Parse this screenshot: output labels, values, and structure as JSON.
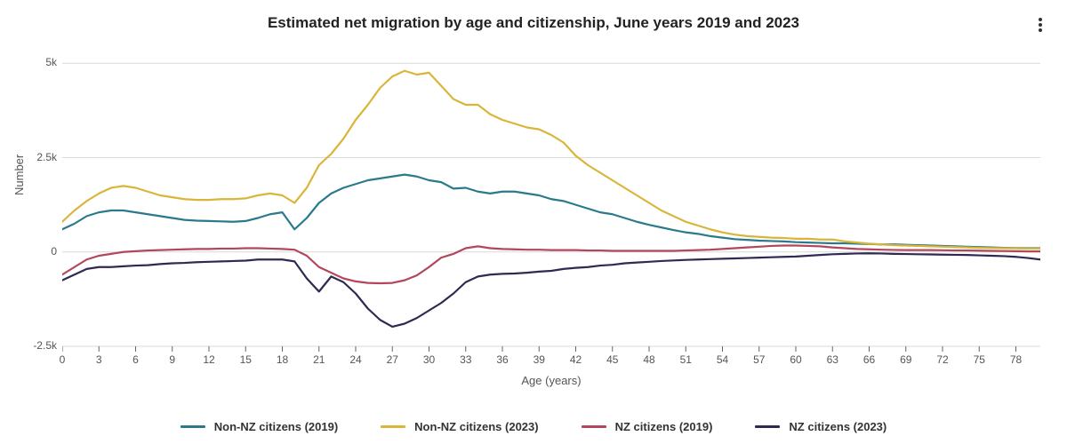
{
  "chart": {
    "type": "line",
    "title": "Estimated net migration by age and citizenship, June years 2019 and 2023",
    "title_fontsize": 17,
    "title_fontweight": 700,
    "background_color": "#ffffff",
    "gridline_color": "#d9d9d9",
    "axis_color": "#666666",
    "tick_font_color": "#555555",
    "x": {
      "label": "Age (years)",
      "label_fontsize": 13,
      "min": 0,
      "max": 80,
      "tick_start": 0,
      "tick_step": 3,
      "tick_end": 78,
      "tick_fontsize": 12
    },
    "y": {
      "label": "Number",
      "label_fontsize": 13,
      "min": -2500,
      "max": 5500,
      "ticks": [
        -2500,
        0,
        2500,
        5000
      ],
      "tick_labels": [
        "-2.5k",
        "0",
        "2.5k",
        "5k"
      ],
      "tick_fontsize": 12
    },
    "line_width": 2.2,
    "series": [
      {
        "key": "non_nz_2019",
        "label": "Non-NZ citizens (2019)",
        "color": "#2a7a8c",
        "values": [
          600,
          750,
          950,
          1050,
          1100,
          1100,
          1050,
          1000,
          950,
          900,
          850,
          830,
          820,
          810,
          800,
          820,
          900,
          1000,
          1050,
          600,
          900,
          1300,
          1550,
          1700,
          1800,
          1900,
          1950,
          2000,
          2050,
          2000,
          1900,
          1850,
          1680,
          1700,
          1600,
          1550,
          1600,
          1600,
          1550,
          1500,
          1400,
          1350,
          1250,
          1150,
          1050,
          1000,
          900,
          800,
          720,
          650,
          580,
          520,
          480,
          420,
          380,
          340,
          320,
          300,
          290,
          280,
          260,
          250,
          240,
          230,
          230,
          220,
          210,
          200,
          200,
          190,
          180,
          170,
          160,
          150,
          140,
          130,
          120,
          110,
          105,
          100,
          100
        ]
      },
      {
        "key": "non_nz_2023",
        "label": "Non-NZ citizens (2023)",
        "color": "#d9b539",
        "values": [
          800,
          1100,
          1350,
          1550,
          1700,
          1750,
          1700,
          1600,
          1500,
          1450,
          1400,
          1380,
          1380,
          1400,
          1400,
          1420,
          1500,
          1550,
          1500,
          1300,
          1700,
          2300,
          2600,
          3000,
          3500,
          3900,
          4350,
          4650,
          4800,
          4700,
          4750,
          4400,
          4050,
          3900,
          3900,
          3650,
          3500,
          3400,
          3300,
          3250,
          3100,
          2900,
          2550,
          2300,
          2100,
          1900,
          1700,
          1500,
          1300,
          1100,
          950,
          800,
          700,
          600,
          520,
          460,
          420,
          400,
          380,
          370,
          350,
          350,
          330,
          330,
          280,
          250,
          220,
          200,
          180,
          170,
          160,
          150,
          140,
          130,
          120,
          110,
          105,
          100,
          95,
          90,
          90
        ]
      },
      {
        "key": "nz_2019",
        "label": "NZ citizens (2019)",
        "color": "#b3465a",
        "values": [
          -600,
          -400,
          -200,
          -100,
          -50,
          0,
          20,
          40,
          50,
          60,
          70,
          80,
          80,
          90,
          90,
          100,
          100,
          90,
          80,
          60,
          -100,
          -400,
          -550,
          -700,
          -780,
          -820,
          -830,
          -820,
          -750,
          -620,
          -400,
          -150,
          -50,
          100,
          150,
          100,
          80,
          70,
          60,
          60,
          50,
          50,
          50,
          40,
          40,
          30,
          30,
          30,
          30,
          30,
          30,
          40,
          50,
          60,
          80,
          100,
          120,
          140,
          160,
          170,
          170,
          160,
          150,
          120,
          100,
          80,
          70,
          60,
          55,
          50,
          50,
          50,
          45,
          40,
          40,
          35,
          30,
          25,
          20,
          15,
          15
        ]
      },
      {
        "key": "nz_2023",
        "label": "NZ citizens (2023)",
        "color": "#2e2a52",
        "values": [
          -750,
          -600,
          -450,
          -400,
          -400,
          -380,
          -360,
          -350,
          -320,
          -300,
          -290,
          -270,
          -260,
          -250,
          -240,
          -230,
          -200,
          -200,
          -200,
          -250,
          -700,
          -1050,
          -650,
          -800,
          -1100,
          -1500,
          -1800,
          -1980,
          -1900,
          -1750,
          -1550,
          -1350,
          -1100,
          -800,
          -650,
          -600,
          -580,
          -570,
          -550,
          -520,
          -500,
          -450,
          -420,
          -400,
          -360,
          -340,
          -300,
          -280,
          -260,
          -240,
          -225,
          -210,
          -200,
          -190,
          -180,
          -170,
          -160,
          -150,
          -140,
          -130,
          -120,
          -100,
          -80,
          -60,
          -50,
          -40,
          -35,
          -40,
          -50,
          -55,
          -60,
          -65,
          -70,
          -75,
          -80,
          -90,
          -100,
          -110,
          -130,
          -160,
          -200
        ]
      }
    ],
    "legend": {
      "fontsize": 13,
      "fontweight": 700,
      "swatch_width": 28
    }
  }
}
